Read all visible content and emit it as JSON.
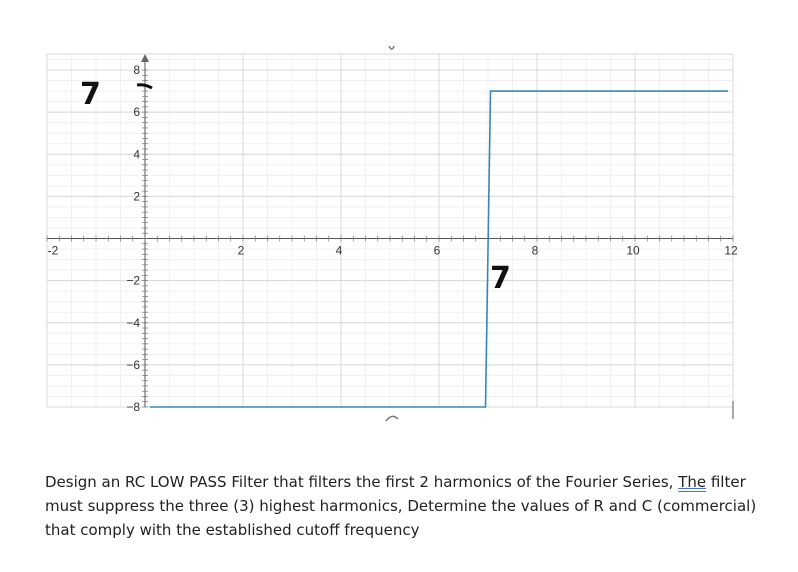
{
  "chart_data": {
    "type": "line",
    "xlim": [
      -2,
      12
    ],
    "ylim": [
      -8,
      8
    ],
    "x_ticks": [
      -2,
      2,
      4,
      6,
      8,
      10,
      12
    ],
    "y_ticks": [
      -8,
      -6,
      -4,
      -2,
      2,
      4,
      6,
      8
    ],
    "x_tick_labels": [
      "-2",
      "2",
      "4",
      "6",
      "8",
      "10",
      "12"
    ],
    "y_tick_labels": [
      "−8",
      "−6",
      "−4",
      "−2",
      "2",
      "4",
      "6",
      "8"
    ],
    "grid": true,
    "series": [
      {
        "color": "#3a86b8",
        "x": [
          0.1,
          6.95,
          7.05,
          11.9
        ],
        "y": [
          -8,
          -8,
          7,
          7
        ]
      }
    ],
    "annotations": [
      {
        "text": "7",
        "note": "handwritten next to y-axis near 7"
      },
      {
        "text": "7",
        "note": "handwritten below step near x = 7"
      }
    ]
  },
  "problem": {
    "part1": "Design an RC LOW PASS Filter that filters the first 2 harmonics of the Fourier Series, ",
    "underlined": "The",
    "part2": " filter must suppress the three (3) highest harmonics, Determine the values of R and C (commercial) that comply with the established cutoff frequency"
  },
  "handwritten": {
    "y_mark": "7",
    "x_mark": "7"
  }
}
